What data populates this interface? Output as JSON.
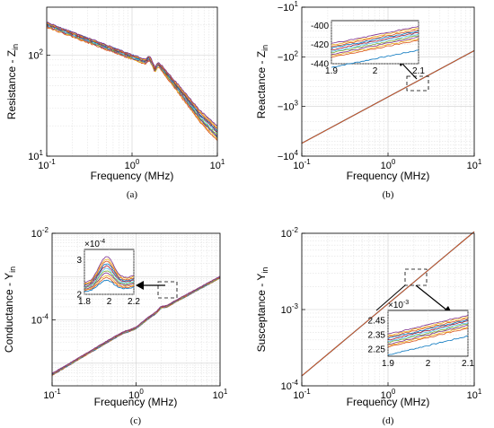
{
  "series_colors": [
    "#0072BD",
    "#D95319",
    "#EDB120",
    "#7E2F8E",
    "#77AC30",
    "#4DBEEE",
    "#A2142F",
    "#0072BD",
    "#D95319",
    "#EDB120",
    "#7E2F8E",
    "#77AC30"
  ],
  "chart_data": [
    {
      "id": "a",
      "type": "line",
      "caption": "(a)",
      "ylabel_main": "Resistance - Z",
      "ylabel_sub": "in",
      "xlabel": "Frequency (MHz)",
      "xscale": "log",
      "yscale": "log",
      "xlim": [
        0.1,
        10
      ],
      "ylim": [
        10,
        300
      ],
      "grid": true,
      "xticks": [
        {
          "v": 0.1,
          "b": "10",
          "e": "-1"
        },
        {
          "v": 1,
          "b": "10",
          "e": "0"
        },
        {
          "v": 10,
          "b": "10",
          "e": "1"
        }
      ],
      "yticks": [
        {
          "v": 10,
          "b": "10",
          "e": "1"
        },
        {
          "v": 100,
          "b": "10",
          "e": "2"
        }
      ],
      "shape": "resistance",
      "n_series": 11
    },
    {
      "id": "b",
      "type": "line",
      "caption": "(b)",
      "ylabel_main": "Reactance - Z",
      "ylabel_sub": "in",
      "xlabel": "Frequency (MHz)",
      "xscale": "log",
      "yscale": "neglog",
      "xlim": [
        0.1,
        10
      ],
      "ylim": [
        -10000,
        -10
      ],
      "grid": true,
      "xticks": [
        {
          "v": 0.1,
          "b": "10",
          "e": "-1"
        },
        {
          "v": 1,
          "b": "10",
          "e": "0"
        },
        {
          "v": 10,
          "b": "10",
          "e": "1"
        }
      ],
      "yticks": [
        {
          "v": -10,
          "b": "−10",
          "e": "1"
        },
        {
          "v": -100,
          "b": "−10",
          "e": "2"
        },
        {
          "v": -1000,
          "b": "−10",
          "e": "3"
        },
        {
          "v": -10000,
          "b": "−10",
          "e": "4"
        }
      ],
      "line_x": [
        0.1,
        10
      ],
      "line_y": [
        -5500,
        -75
      ],
      "inset": {
        "xlim": [
          1.9,
          2.1
        ],
        "ylim": [
          -440,
          -395
        ],
        "xticks": [
          "1.9",
          "2",
          "2.1"
        ],
        "xtick_vals": [
          1.9,
          2.0,
          2.1
        ],
        "yticks": [
          "-400",
          "-420",
          "-440"
        ],
        "ytick_vals": [
          -400,
          -420,
          -440
        ],
        "exponent": "",
        "center": -418,
        "spread": 8,
        "slope": 150
      }
    },
    {
      "id": "c",
      "type": "line",
      "caption": "(c)",
      "ylabel_main": "Conductance - Y",
      "ylabel_sub": "in",
      "xlabel": "Frequency (MHz)",
      "xscale": "log",
      "yscale": "log",
      "xlim": [
        0.1,
        10
      ],
      "ylim": [
        3e-06,
        0.01
      ],
      "grid": true,
      "xticks": [
        {
          "v": 0.1,
          "b": "10",
          "e": "-1"
        },
        {
          "v": 1,
          "b": "10",
          "e": "0"
        },
        {
          "v": 10,
          "b": "10",
          "e": "1"
        }
      ],
      "yticks": [
        {
          "v": 0.0001,
          "b": "10",
          "e": "-4"
        },
        {
          "v": 0.01,
          "b": "10",
          "e": "-2"
        }
      ],
      "shape": "conductance",
      "n_series": 11,
      "inset": {
        "xlim": [
          1.8,
          2.2
        ],
        "ylim": [
          2,
          3.3
        ],
        "xticks": [
          "1.8",
          "2",
          "2.2"
        ],
        "xtick_vals": [
          1.8,
          2.0,
          2.2
        ],
        "yticks": [
          "3",
          "2"
        ],
        "ytick_vals": [
          3,
          2
        ],
        "exponent": "-4",
        "peak": 2.75,
        "spread": 0.22
      }
    },
    {
      "id": "d",
      "type": "line",
      "caption": "(d)",
      "ylabel_main": "Susceptance - Y",
      "ylabel_sub": "in",
      "xlabel": "Frequency (MHz)",
      "xscale": "log",
      "yscale": "log",
      "xlim": [
        0.1,
        10
      ],
      "ylim": [
        0.0001,
        0.01
      ],
      "grid": true,
      "xticks": [
        {
          "v": 0.1,
          "b": "10",
          "e": "-1"
        },
        {
          "v": 1,
          "b": "10",
          "e": "0"
        },
        {
          "v": 10,
          "b": "10",
          "e": "1"
        }
      ],
      "yticks": [
        {
          "v": 0.0001,
          "b": "10",
          "e": "-4"
        },
        {
          "v": 0.001,
          "b": "10",
          "e": "-3"
        },
        {
          "v": 0.01,
          "b": "10",
          "e": "-2"
        }
      ],
      "line_x": [
        0.1,
        10
      ],
      "line_y": [
        0.000135,
        0.0105
      ],
      "inset": {
        "xlim": [
          1.9,
          2.1
        ],
        "ylim": [
          2.2,
          2.52
        ],
        "xticks": [
          "1.9",
          "2",
          "2.1"
        ],
        "xtick_vals": [
          1.9,
          2.0,
          2.1
        ],
        "yticks": [
          "2.45",
          "2.35",
          "2.25"
        ],
        "ytick_vals": [
          2.45,
          2.35,
          2.25
        ],
        "exponent": "-3",
        "center": 2.37,
        "spread": 0.05,
        "slope": 1.1
      }
    }
  ]
}
